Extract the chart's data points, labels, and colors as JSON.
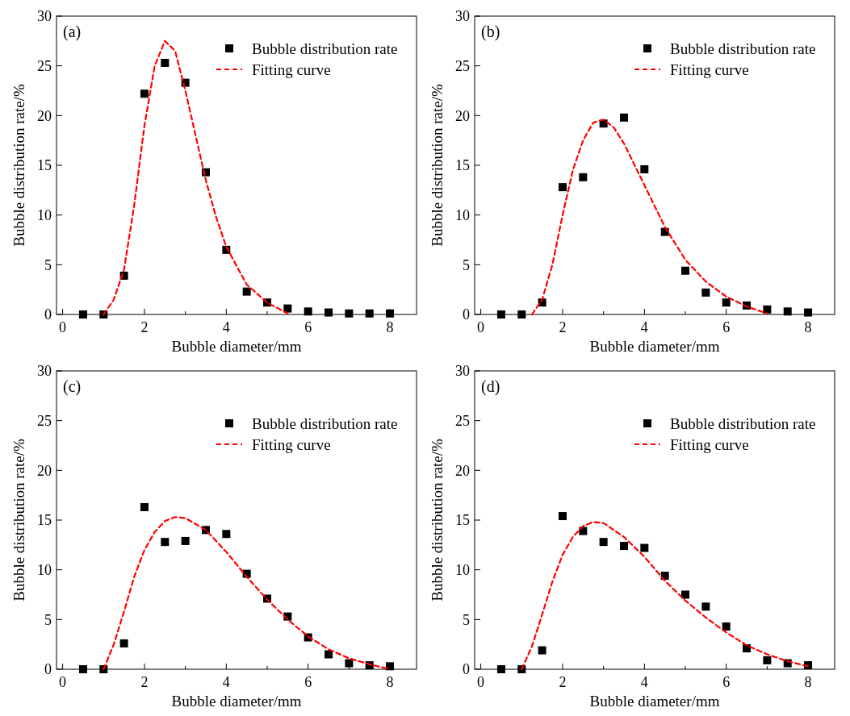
{
  "chart_data": [
    {
      "type": "scatter",
      "annotations": [
        "(a)"
      ],
      "xlabel": "Bubble diameter/mm",
      "ylabel": "Bubble distribution rate/%",
      "xlim": [
        -0.15,
        8.65
      ],
      "ylim": [
        0,
        30
      ],
      "xticks": [
        0,
        {
          "value": 1,
          "label": null
        },
        2,
        {
          "value": 3,
          "label": null
        },
        4,
        {
          "value": 5,
          "label": null
        },
        6,
        {
          "value": 7,
          "label": null
        },
        8
      ],
      "yticks": [
        0,
        5,
        10,
        15,
        20,
        25,
        30
      ],
      "legend": "top right",
      "series": [
        {
          "name": "Bubble distribution rate",
          "marker": "square",
          "color": "#000000",
          "x": [
            0.5,
            1,
            1.5,
            2,
            2.5,
            3,
            3.5,
            4,
            4.5,
            5,
            5.5,
            6,
            6.5,
            7,
            7.5,
            8
          ],
          "values": [
            0,
            0,
            3.9,
            22.2,
            25.3,
            23.3,
            14.3,
            6.5,
            2.3,
            1.2,
            0.6,
            0.3,
            0.2,
            0.1,
            0.1,
            0.1
          ]
        },
        {
          "name": "Fitting curve",
          "type": "line",
          "line_style": "dashed",
          "color": "#ff0000",
          "x": [
            1,
            1.25,
            1.5,
            1.75,
            2,
            2.25,
            2.5,
            2.75,
            3,
            3.25,
            3.5,
            3.75,
            4,
            4.5,
            5,
            5.5
          ],
          "values": [
            0,
            1.5,
            4.5,
            11,
            19,
            25,
            27.5,
            26.5,
            22.5,
            18,
            13.5,
            9.8,
            6.8,
            3,
            1.2,
            0.1
          ]
        }
      ]
    },
    {
      "type": "scatter",
      "annotations": [
        "(b)"
      ],
      "xlabel": "Bubble diameter/mm",
      "ylabel": "Bubble distribution rate/%",
      "xlim": [
        -0.15,
        8.65
      ],
      "ylim": [
        0,
        30
      ],
      "xticks": [
        0,
        {
          "value": 1,
          "label": null
        },
        2,
        {
          "value": 3,
          "label": null
        },
        4,
        {
          "value": 5,
          "label": null
        },
        6,
        {
          "value": 7,
          "label": null
        },
        8
      ],
      "yticks": [
        0,
        5,
        10,
        15,
        20,
        25,
        30
      ],
      "legend": "top right",
      "series": [
        {
          "name": "Bubble distribution rate",
          "marker": "square",
          "color": "#000000",
          "x": [
            0.5,
            1,
            1.5,
            2,
            2.5,
            3,
            3.5,
            4,
            4.5,
            5,
            5.5,
            6,
            6.5,
            7,
            7.5,
            8
          ],
          "values": [
            0,
            0,
            1.2,
            12.8,
            13.8,
            19.2,
            19.8,
            14.6,
            8.3,
            4.4,
            2.2,
            1.2,
            0.9,
            0.5,
            0.3,
            0.2
          ]
        },
        {
          "name": "Fitting curve",
          "type": "line",
          "line_style": "dashed",
          "color": "#ff0000",
          "x": [
            1.25,
            1.5,
            1.75,
            2,
            2.25,
            2.5,
            2.75,
            3,
            3.25,
            3.5,
            4,
            4.5,
            5,
            5.5,
            6,
            6.5,
            7
          ],
          "values": [
            0,
            1.5,
            5,
            10,
            14.5,
            17.5,
            19.3,
            19.6,
            18.8,
            17.2,
            13,
            8.8,
            5.5,
            3.3,
            1.8,
            0.8,
            0.1
          ]
        }
      ]
    },
    {
      "type": "scatter",
      "annotations": [
        "(c)"
      ],
      "xlabel": "Bubble diameter/mm",
      "ylabel": "Bubble distribution rate/%",
      "xlim": [
        -0.15,
        8.65
      ],
      "ylim": [
        0,
        30
      ],
      "xticks": [
        0,
        {
          "value": 1,
          "label": null
        },
        2,
        {
          "value": 3,
          "label": null
        },
        4,
        {
          "value": 5,
          "label": null
        },
        6,
        {
          "value": 7,
          "label": null
        },
        8
      ],
      "yticks": [
        0,
        5,
        10,
        15,
        20,
        25,
        30
      ],
      "legend": "top right",
      "series": [
        {
          "name": "Bubble distribution rate",
          "marker": "square",
          "color": "#000000",
          "x": [
            0.5,
            1,
            1.5,
            2,
            2.5,
            3,
            3.5,
            4,
            4.5,
            5,
            5.5,
            6,
            6.5,
            7,
            7.5,
            8
          ],
          "values": [
            0,
            0,
            2.6,
            16.3,
            12.8,
            12.9,
            14,
            13.6,
            9.6,
            7.1,
            5.3,
            3.2,
            1.5,
            0.6,
            0.4,
            0.3
          ]
        },
        {
          "name": "Fitting curve",
          "type": "line",
          "line_style": "dashed",
          "color": "#ff0000",
          "x": [
            1,
            1.25,
            1.5,
            1.75,
            2,
            2.25,
            2.5,
            2.75,
            3,
            3.5,
            4,
            4.5,
            5,
            5.5,
            6,
            6.5,
            7,
            7.5,
            8
          ],
          "values": [
            0,
            2.5,
            5.8,
            9.3,
            12,
            13.8,
            14.9,
            15.3,
            15.2,
            14,
            11.8,
            9.3,
            7,
            5,
            3.3,
            2,
            1.1,
            0.5,
            0
          ]
        }
      ]
    },
    {
      "type": "scatter",
      "annotations": [
        "(d)"
      ],
      "xlabel": "Bubble diameter/mm",
      "ylabel": "Bubble distribution rate/%",
      "xlim": [
        -0.15,
        8.65
      ],
      "ylim": [
        0,
        30
      ],
      "xticks": [
        0,
        {
          "value": 1,
          "label": null
        },
        2,
        {
          "value": 3,
          "label": null
        },
        4,
        {
          "value": 5,
          "label": null
        },
        6,
        {
          "value": 7,
          "label": null
        },
        8
      ],
      "yticks": [
        0,
        5,
        10,
        15,
        20,
        25,
        30
      ],
      "legend": "top right",
      "series": [
        {
          "name": "Bubble distribution rate",
          "marker": "square",
          "color": "#000000",
          "x": [
            0.5,
            1,
            1.5,
            2,
            2.5,
            3,
            3.5,
            4,
            4.5,
            5,
            5.5,
            6,
            6.5,
            7,
            7.5,
            8
          ],
          "values": [
            0,
            0,
            1.9,
            15.4,
            13.9,
            12.8,
            12.4,
            12.2,
            9.4,
            7.5,
            6.3,
            4.3,
            2.1,
            0.9,
            0.6,
            0.4
          ]
        },
        {
          "name": "Fitting curve",
          "type": "line",
          "line_style": "dashed",
          "color": "#ff0000",
          "x": [
            1,
            1.25,
            1.5,
            1.75,
            2,
            2.25,
            2.5,
            2.75,
            3,
            3.5,
            4,
            4.5,
            5,
            5.5,
            6,
            6.5,
            7,
            7.5,
            8
          ],
          "values": [
            0,
            2.3,
            5.5,
            8.8,
            11.5,
            13.3,
            14.4,
            14.8,
            14.7,
            13.3,
            11.3,
            8.9,
            6.9,
            5.2,
            3.7,
            2.4,
            1.5,
            0.8,
            0.3
          ]
        }
      ]
    }
  ]
}
